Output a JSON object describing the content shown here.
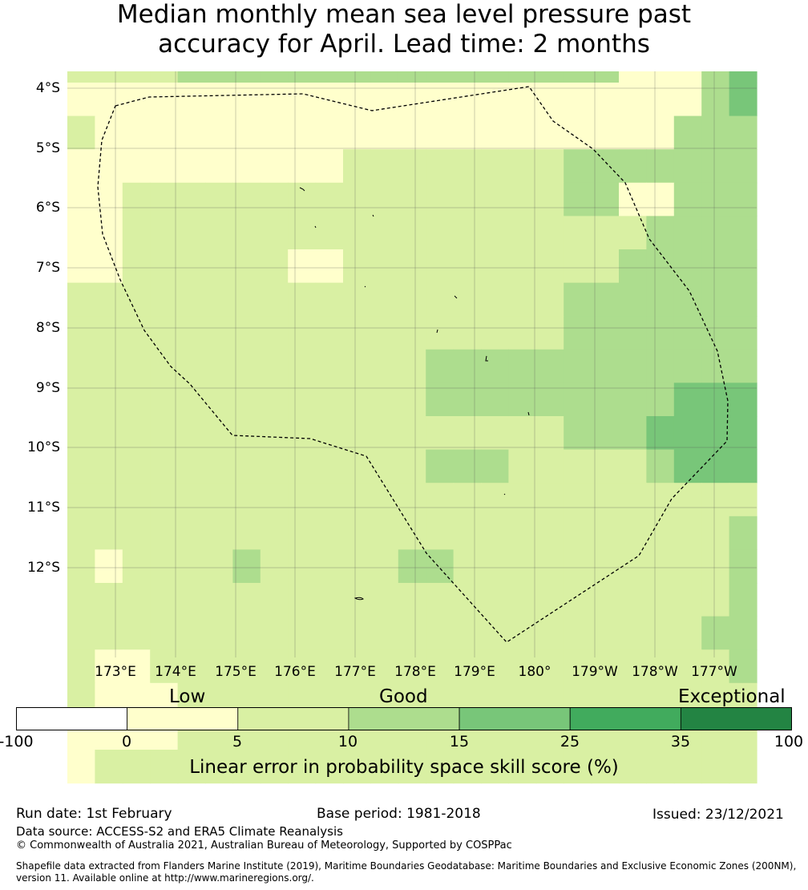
{
  "title": {
    "line1": "Median monthly mean sea level pressure past",
    "line2": "accuracy for April. Lead time: 2 months"
  },
  "map": {
    "lat_labels": [
      "4°S",
      "5°S",
      "6°S",
      "7°S",
      "8°S",
      "9°S",
      "10°S",
      "11°S",
      "12°S"
    ],
    "lon_labels": [
      "173°E",
      "174°E",
      "175°E",
      "176°E",
      "177°E",
      "178°E",
      "179°E",
      "180°",
      "179°W",
      "178°W",
      "177°W"
    ],
    "grid_rows": [
      "1111333333333333333322234",
      "0222000000000000000000234",
      "1000000000000000000022333",
      "0000000000111111113333333",
      "0011111111111111113322333",
      "0011111111111111111113333",
      "0011111100111111111133333",
      "1111111111111111113333333",
      "1111111111111111113333333",
      "1111111111111333333333333",
      "1111111111111333333333444",
      "1111111111111111113335444",
      "1111111111111333111113444",
      "1111111111111111111111111",
      "1111111111111111111111113",
      "1011113111113311111111113",
      "1111111111111111111111113",
      "1111111111111111111111133",
      "1001111111111111111111113",
      "1000111111111111111111111",
      "2200111111111111111111111",
      "2111111111111111111111111"
    ]
  },
  "legend": {
    "categories": [
      "Low",
      "Good",
      "Exceptional"
    ],
    "tick_labels": [
      "-100",
      "0",
      "5",
      "10",
      "15",
      "25",
      "35",
      "100"
    ],
    "colors": [
      "#ffffff",
      "#ffffcc",
      "#d9f0a3",
      "#addd8e",
      "#78c679",
      "#41ab5d",
      "#238443"
    ],
    "axis_title": "Linear error in probability space skill score (%)"
  },
  "footer": {
    "run_date": "Run date: 1st February",
    "base_period": "Base period: 1981-2018",
    "issued": "Issued: 23/12/2021",
    "data_source": "Data source: ACCESS-S2 and ERA5 Climate Reanalysis",
    "copyright": "© Commonwealth of Australia 2021, Australian Bureau of Meteorology, Supported by COSPPac",
    "shapefile_line1": "Shapefile data extracted from Flanders Marine Institute (2019), Maritime Boundaries Geodatabase: Maritime Boundaries and Exclusive Economic Zones (200NM),",
    "shapefile_line2": "version 11. Available online at http://www.marineregions.org/."
  }
}
